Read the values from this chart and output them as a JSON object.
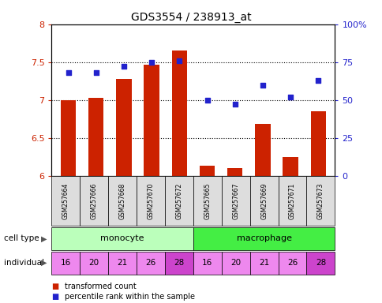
{
  "title": "GDS3554 / 238913_at",
  "samples": [
    "GSM257664",
    "GSM257666",
    "GSM257668",
    "GSM257670",
    "GSM257672",
    "GSM257665",
    "GSM257667",
    "GSM257669",
    "GSM257671",
    "GSM257673"
  ],
  "transformed_count": [
    7.0,
    7.03,
    7.28,
    7.47,
    7.65,
    6.13,
    6.1,
    6.68,
    6.25,
    6.85
  ],
  "percentile_rank": [
    68,
    68,
    72,
    75,
    76,
    50,
    47,
    60,
    52,
    63
  ],
  "cell_types": [
    "monocyte",
    "monocyte",
    "monocyte",
    "monocyte",
    "monocyte",
    "macrophage",
    "macrophage",
    "macrophage",
    "macrophage",
    "macrophage"
  ],
  "individuals": [
    "16",
    "20",
    "21",
    "26",
    "28",
    "16",
    "20",
    "21",
    "26",
    "28"
  ],
  "bar_color": "#cc2200",
  "dot_color": "#2222cc",
  "monocyte_color": "#bbffbb",
  "macrophage_color": "#44ee44",
  "indiv_color_normal": "#ee88ee",
  "indiv_color_28": "#cc44cc",
  "ylim_left": [
    6.0,
    8.0
  ],
  "ylim_right": [
    0,
    100
  ],
  "yticks_left": [
    6.0,
    6.5,
    7.0,
    7.5,
    8.0
  ],
  "ytick_labels_left": [
    "6",
    "6.5",
    "7",
    "7.5",
    "8"
  ],
  "yticks_right": [
    0,
    25,
    50,
    75,
    100
  ],
  "ytick_labels_right": [
    "0",
    "25",
    "50",
    "75",
    "100%"
  ],
  "dotted_lines": [
    6.5,
    7.0,
    7.5
  ],
  "bar_width": 0.55,
  "legend_red": "transformed count",
  "legend_blue": "percentile rank within the sample",
  "label_cell_type": "cell type",
  "label_individual": "individual"
}
